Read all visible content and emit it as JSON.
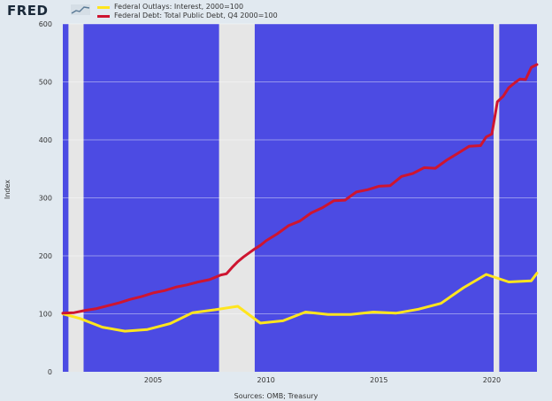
{
  "header": {
    "logo": "FRED",
    "logo_mark_icon": "fred-chart-icon"
  },
  "chart_data": {
    "type": "line",
    "title": "",
    "xlabel": "",
    "ylabel": "Index",
    "source": "Sources: OMB; Treasury",
    "xlim": [
      2001.0,
      2022.0
    ],
    "ylim": [
      0,
      600
    ],
    "yticks": [
      0,
      100,
      200,
      300,
      400,
      500,
      600
    ],
    "ytick_labels": [
      "0",
      "100",
      "200",
      "300",
      "400",
      "500",
      "600"
    ],
    "xticks": [
      2005,
      2010,
      2015,
      2020
    ],
    "xtick_labels": [
      "2005",
      "2010",
      "2015",
      "2020"
    ],
    "grid": true,
    "legend": "top-left",
    "background_color": "#4c4be3",
    "recession_color": "#e6e6e6",
    "recessions": [
      [
        2001.25,
        2001.92
      ],
      [
        2007.92,
        2009.5
      ],
      [
        2020.08,
        2020.33
      ]
    ],
    "series": [
      {
        "name": "Federal Outlays: Interest, 2000=100",
        "color": "#ffe51e",
        "x": [
          2001.0,
          2001.75,
          2002.75,
          2003.75,
          2004.75,
          2005.75,
          2006.75,
          2007.75,
          2008.75,
          2009.75,
          2010.75,
          2011.75,
          2012.75,
          2013.75,
          2014.75,
          2015.75,
          2016.75,
          2017.75,
          2018.75,
          2019.75,
          2020.75,
          2021.75,
          2022.0
        ],
        "values": [
          100,
          92,
          77,
          70,
          73,
          83,
          102,
          107,
          113,
          84,
          88,
          103,
          99,
          99,
          103,
          101,
          108,
          118,
          145,
          168,
          155,
          157,
          170
        ]
      },
      {
        "name": "Federal Debt: Total Public Debt, Q4 2000=100",
        "color": "#ce1530",
        "x": [
          2001.0,
          2001.5,
          2002.0,
          2002.5,
          2003.0,
          2003.5,
          2004.0,
          2004.5,
          2005.0,
          2005.5,
          2006.0,
          2006.5,
          2007.0,
          2007.5,
          2008.0,
          2008.25,
          2008.5,
          2008.75,
          2009.0,
          2009.25,
          2009.5,
          2009.75,
          2010.0,
          2010.5,
          2011.0,
          2011.5,
          2012.0,
          2012.5,
          2013.0,
          2013.5,
          2014.0,
          2014.5,
          2015.0,
          2015.5,
          2016.0,
          2016.5,
          2017.0,
          2017.5,
          2018.0,
          2018.5,
          2019.0,
          2019.5,
          2019.75,
          2020.0,
          2020.25,
          2020.5,
          2020.75,
          2021.0,
          2021.25,
          2021.5,
          2021.75,
          2022.0
        ],
        "values": [
          101,
          102,
          106,
          109,
          114,
          119,
          125,
          130,
          136,
          140,
          146,
          150,
          155,
          159,
          167,
          169,
          180,
          190,
          198,
          205,
          212,
          218,
          226,
          238,
          252,
          260,
          274,
          283,
          295,
          296,
          310,
          314,
          320,
          321,
          337,
          342,
          352,
          351,
          365,
          377,
          389,
          390,
          405,
          410,
          466,
          475,
          490,
          498,
          505,
          504,
          525,
          530
        ]
      }
    ]
  }
}
